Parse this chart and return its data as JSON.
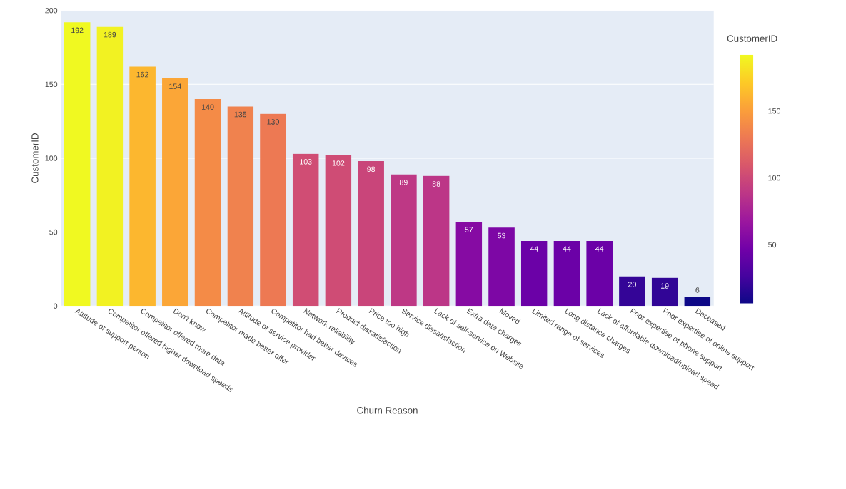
{
  "chart_data": {
    "type": "bar",
    "xlabel": "Churn Reason",
    "ylabel": "CustomerID",
    "clabel": "CustomerID",
    "categories": [
      "Attitude of support person",
      "Competitor offered higher download speeds",
      "Competitor offered more data",
      "Don't know",
      "Competitor made better offer",
      "Attitude of service provider",
      "Competitor had better devices",
      "Network reliability",
      "Product dissatisfaction",
      "Price too high",
      "Service dissatisfaction",
      "Lack of self-service on Website",
      "Extra data charges",
      "Moved",
      "Limited range of services",
      "Long distance charges",
      "Lack of affordable download/upload speed",
      "Poor expertise of phone support",
      "Poor expertise of online support",
      "Deceased"
    ],
    "values": [
      192,
      189,
      162,
      154,
      140,
      135,
      130,
      103,
      102,
      98,
      89,
      88,
      57,
      53,
      44,
      44,
      44,
      20,
      19,
      6
    ],
    "colors": [
      "#f0f921",
      "#f2f222",
      "#fcb72f",
      "#fba637",
      "#f48b47",
      "#f0824e",
      "#ed7953",
      "#d04d74",
      "#cf4c75",
      "#c9457a",
      "#be3885",
      "#bc3687",
      "#860ba3",
      "#7d07a5",
      "#6b01a7",
      "#6b01a7",
      "#6b01a7",
      "#340597",
      "#310596",
      "#0d0887"
    ],
    "data_labels": true,
    "ylim": [
      0,
      200
    ],
    "yticks": [
      0,
      50,
      100,
      150,
      200
    ],
    "grid": "y",
    "clim": [
      6,
      192
    ],
    "cticks": [
      50,
      100,
      150
    ]
  }
}
